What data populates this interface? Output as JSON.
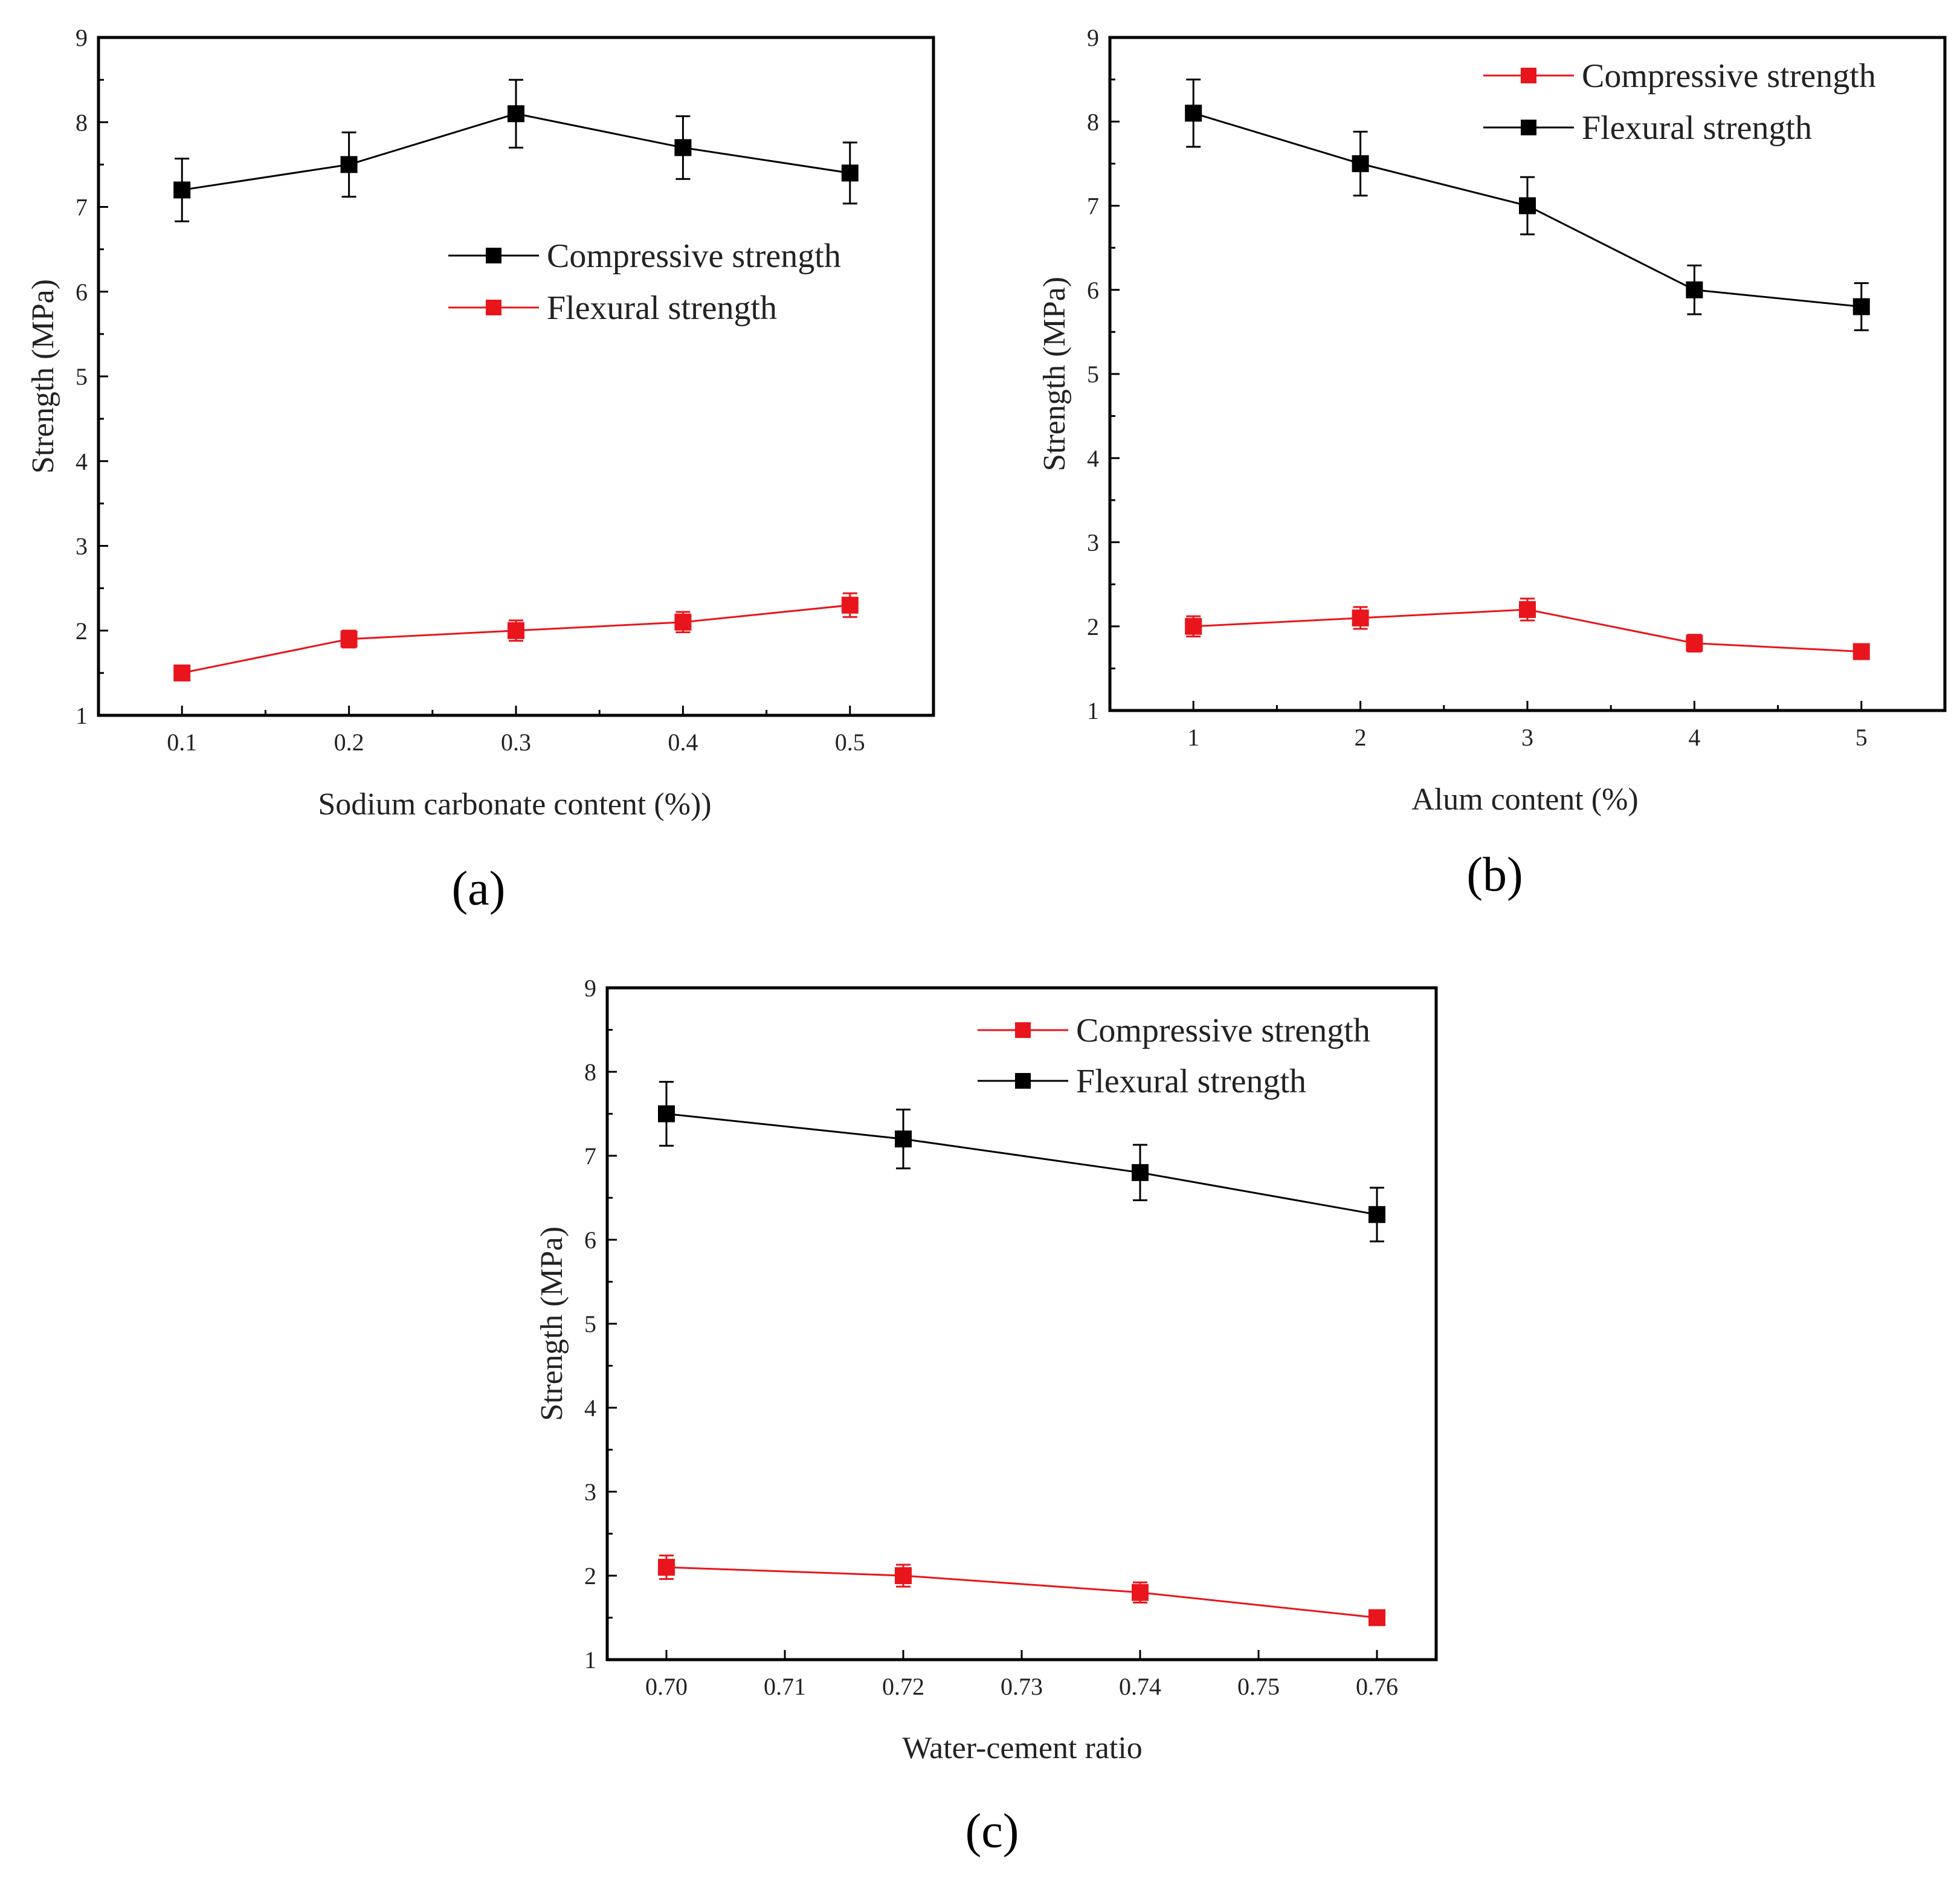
{
  "chart_data": [
    {
      "type": "line",
      "panel_label": "(a)",
      "xlabel": "Sodium carbonate content (%))",
      "ylabel": "Strength (MPa)",
      "x": [
        0.1,
        0.2,
        0.3,
        0.4,
        0.5
      ],
      "x_tick_labels": [
        "0.1",
        "0.2",
        "0.3",
        "0.4",
        "0.5"
      ],
      "xlim": [
        0.05,
        0.55
      ],
      "y_ticks": [
        1,
        2,
        3,
        4,
        5,
        6,
        7,
        8,
        9
      ],
      "y_tick_labels": [
        "1",
        "2",
        "3",
        "4",
        "5",
        "6",
        "7",
        "8",
        "9"
      ],
      "ylim": [
        1,
        9
      ],
      "legend_position": "center-right",
      "series": [
        {
          "name": "Compressive strength",
          "color": "#000000",
          "values": [
            7.2,
            7.5,
            8.1,
            7.7,
            7.4
          ],
          "errors": [
            0.37,
            0.38,
            0.4,
            0.37,
            0.36
          ]
        },
        {
          "name": "Flexural strength",
          "color": "#e8161c",
          "values": [
            1.5,
            1.9,
            2.0,
            2.1,
            2.3
          ],
          "errors": [
            0.06,
            0.1,
            0.12,
            0.12,
            0.14
          ]
        }
      ]
    },
    {
      "type": "line",
      "panel_label": "(b)",
      "xlabel": "Alum content (%)",
      "ylabel": "Strength (MPa)",
      "x": [
        1,
        2,
        3,
        4,
        5
      ],
      "x_tick_labels": [
        "1",
        "2",
        "3",
        "4",
        "5"
      ],
      "xlim": [
        0.5,
        5.5
      ],
      "y_ticks": [
        1,
        2,
        3,
        4,
        5,
        6,
        7,
        8,
        9
      ],
      "y_tick_labels": [
        "1",
        "2",
        "3",
        "4",
        "5",
        "6",
        "7",
        "8",
        "9"
      ],
      "ylim": [
        1,
        9
      ],
      "legend_position": "top-right",
      "series": [
        {
          "name": "Compressive strength",
          "color": "#e8161c",
          "values": [
            2.0,
            2.1,
            2.2,
            1.8,
            1.7
          ],
          "errors": [
            0.12,
            0.13,
            0.13,
            0.1,
            0.08
          ]
        },
        {
          "name": "Flexural strength",
          "color": "#000000",
          "values": [
            8.1,
            7.5,
            7.0,
            6.0,
            5.8
          ],
          "errors": [
            0.4,
            0.38,
            0.34,
            0.29,
            0.28
          ]
        }
      ]
    },
    {
      "type": "line",
      "panel_label": "(c)",
      "xlabel": "Water-cement ratio",
      "ylabel": "Strength (MPa)",
      "x": [
        0.7,
        0.72,
        0.74,
        0.76
      ],
      "x_tick_values": [
        0.7,
        0.71,
        0.72,
        0.73,
        0.74,
        0.75,
        0.76
      ],
      "x_tick_labels": [
        "0.70",
        "0.71",
        "0.72",
        "0.73",
        "0.74",
        "0.75",
        "0.76"
      ],
      "xlim": [
        0.695,
        0.765
      ],
      "y_ticks": [
        1,
        2,
        3,
        4,
        5,
        6,
        7,
        8,
        9
      ],
      "y_tick_labels": [
        "1",
        "2",
        "3",
        "4",
        "5",
        "6",
        "7",
        "8",
        "9"
      ],
      "ylim": [
        1,
        9
      ],
      "legend_position": "top-right",
      "series": [
        {
          "name": "Compressive strength",
          "color": "#e8161c",
          "values": [
            2.1,
            2.0,
            1.8,
            1.5
          ],
          "errors": [
            0.14,
            0.13,
            0.12,
            0.07
          ]
        },
        {
          "name": "Flexural strength",
          "color": "#000000",
          "values": [
            7.5,
            7.2,
            6.8,
            6.3
          ],
          "errors": [
            0.38,
            0.35,
            0.33,
            0.32
          ]
        }
      ]
    }
  ]
}
